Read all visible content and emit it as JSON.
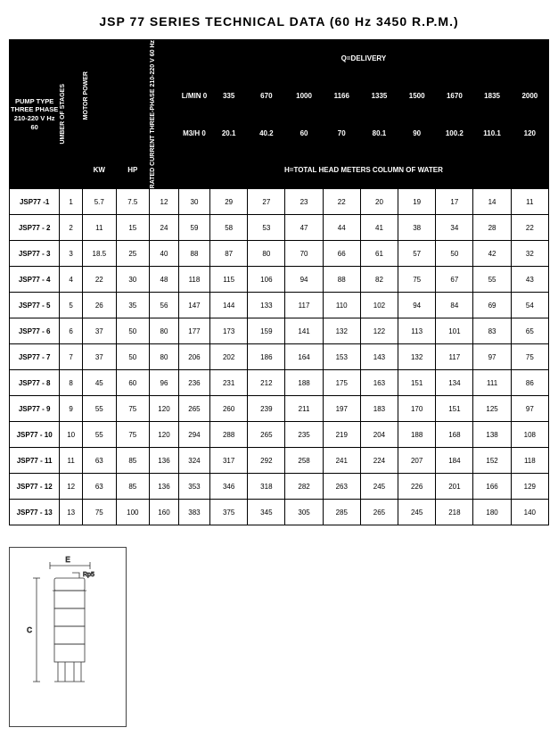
{
  "title": "JSP 77 SERIES TECHNICAL DATA (60 Hz 3450 R.P.M.)",
  "headers": {
    "pump_type": "PUMP TYPE THREE PHASE 210-220 V Hz 60",
    "stages": "UMBER OF STAGES",
    "motor_power": "MOTOR POWER",
    "rated": "RATED CURRENT THREE-PHASE 210-220 V   60 Hz",
    "kw": "KW",
    "hp": "HP",
    "qdelivery": "Q=DELIVERY",
    "lmin": "L/MIN 0",
    "m3h": "M3/H 0",
    "head": "H=TOTAL HEAD METERS COLUMN OF WATER"
  },
  "lmin_vals": [
    "335",
    "670",
    "1000",
    "1166",
    "1335",
    "1500",
    "1670",
    "1835",
    "2000"
  ],
  "m3h_vals": [
    "20.1",
    "40.2",
    "60",
    "70",
    "80.1",
    "90",
    "100.2",
    "110.1",
    "120"
  ],
  "rows": [
    {
      "model": "JSP77 -1",
      "st": "1",
      "kw": "5.7",
      "hp": "7.5",
      "rc": "12",
      "h": [
        "30",
        "29",
        "27",
        "23",
        "22",
        "20",
        "19",
        "17",
        "14",
        "11"
      ]
    },
    {
      "model": "JSP77 - 2",
      "st": "2",
      "kw": "11",
      "hp": "15",
      "rc": "24",
      "h": [
        "59",
        "58",
        "53",
        "47",
        "44",
        "41",
        "38",
        "34",
        "28",
        "22"
      ]
    },
    {
      "model": "JSP77 - 3",
      "st": "3",
      "kw": "18.5",
      "hp": "25",
      "rc": "40",
      "h": [
        "88",
        "87",
        "80",
        "70",
        "66",
        "61",
        "57",
        "50",
        "42",
        "32"
      ]
    },
    {
      "model": "JSP77 - 4",
      "st": "4",
      "kw": "22",
      "hp": "30",
      "rc": "48",
      "h": [
        "118",
        "115",
        "106",
        "94",
        "88",
        "82",
        "75",
        "67",
        "55",
        "43"
      ]
    },
    {
      "model": "JSP77 - 5",
      "st": "5",
      "kw": "26",
      "hp": "35",
      "rc": "56",
      "h": [
        "147",
        "144",
        "133",
        "117",
        "110",
        "102",
        "94",
        "84",
        "69",
        "54"
      ]
    },
    {
      "model": "JSP77 - 6",
      "st": "6",
      "kw": "37",
      "hp": "50",
      "rc": "80",
      "h": [
        "177",
        "173",
        "159",
        "141",
        "132",
        "122",
        "113",
        "101",
        "83",
        "65"
      ]
    },
    {
      "model": "JSP77 - 7",
      "st": "7",
      "kw": "37",
      "hp": "50",
      "rc": "80",
      "h": [
        "206",
        "202",
        "186",
        "164",
        "153",
        "143",
        "132",
        "117",
        "97",
        "75"
      ]
    },
    {
      "model": "JSP77 - 8",
      "st": "8",
      "kw": "45",
      "hp": "60",
      "rc": "96",
      "h": [
        "236",
        "231",
        "212",
        "188",
        "175",
        "163",
        "151",
        "134",
        "111",
        "86"
      ]
    },
    {
      "model": "JSP77 - 9",
      "st": "9",
      "kw": "55",
      "hp": "75",
      "rc": "120",
      "h": [
        "265",
        "260",
        "239",
        "211",
        "197",
        "183",
        "170",
        "151",
        "125",
        "97"
      ]
    },
    {
      "model": "JSP77 - 10",
      "st": "10",
      "kw": "55",
      "hp": "75",
      "rc": "120",
      "h": [
        "294",
        "288",
        "265",
        "235",
        "219",
        "204",
        "188",
        "168",
        "138",
        "108"
      ]
    },
    {
      "model": "JSP77 - 11",
      "st": "11",
      "kw": "63",
      "hp": "85",
      "rc": "136",
      "h": [
        "324",
        "317",
        "292",
        "258",
        "241",
        "224",
        "207",
        "184",
        "152",
        "118"
      ]
    },
    {
      "model": "JSP77 - 12",
      "st": "12",
      "kw": "63",
      "hp": "85",
      "rc": "136",
      "h": [
        "353",
        "346",
        "318",
        "282",
        "263",
        "245",
        "226",
        "201",
        "166",
        "129"
      ]
    },
    {
      "model": "JSP77 - 13",
      "st": "13",
      "kw": "75",
      "hp": "100",
      "rc": "160",
      "h": [
        "383",
        "375",
        "345",
        "305",
        "285",
        "265",
        "245",
        "218",
        "180",
        "140"
      ]
    }
  ],
  "diagram": {
    "e": "E",
    "rp": "Rp5",
    "c": "C"
  }
}
